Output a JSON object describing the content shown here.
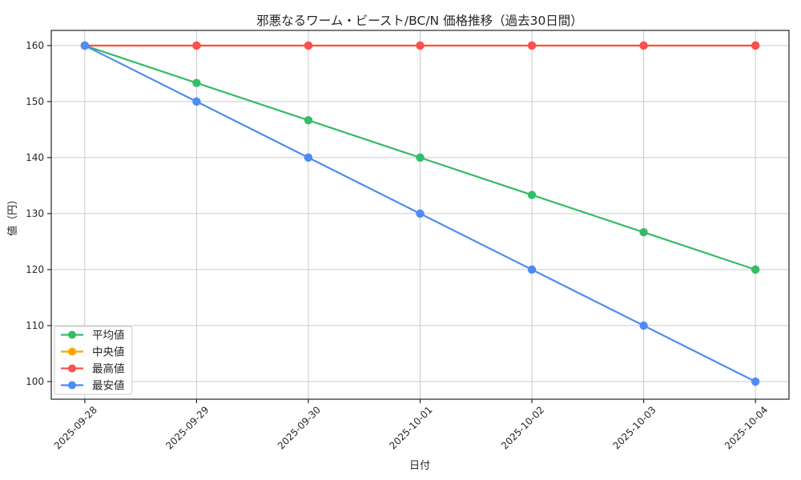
{
  "chart_data": {
    "type": "line",
    "title": "邪悪なるワーム・ビースト/BC/N 価格推移（過去30日間）",
    "xlabel": "日付",
    "ylabel": "値（円）",
    "x": [
      "2025-09-28",
      "2025-09-29",
      "2025-09-30",
      "2025-10-01",
      "2025-10-02",
      "2025-10-03",
      "2025-10-04"
    ],
    "series": [
      {
        "name": "平均値",
        "color": "#33bd66",
        "values": [
          160,
          153.33,
          146.67,
          140,
          133.33,
          126.67,
          120
        ]
      },
      {
        "name": "中央値",
        "color": "#ffa500",
        "values": [
          160,
          160,
          160,
          160,
          160,
          160,
          160
        ]
      },
      {
        "name": "最高値",
        "color": "#fa5050",
        "values": [
          160,
          160,
          160,
          160,
          160,
          160,
          160
        ]
      },
      {
        "name": "最安値",
        "color": "#4d8cf5",
        "values": [
          160,
          150,
          140,
          130,
          120,
          110,
          100
        ]
      }
    ],
    "yticks": [
      100,
      110,
      120,
      130,
      140,
      150,
      160
    ],
    "ylim": [
      96.86,
      162.71
    ],
    "grid": true,
    "legend_position": "lower-left",
    "marker": "circle"
  },
  "style": {
    "grid_color": "#c8c8c8",
    "spine_color": "#262626",
    "tick_color": "#262626",
    "legend_border_color": "#cccccc",
    "legend_bg_color": "#ffffff",
    "background": "#ffffff"
  }
}
